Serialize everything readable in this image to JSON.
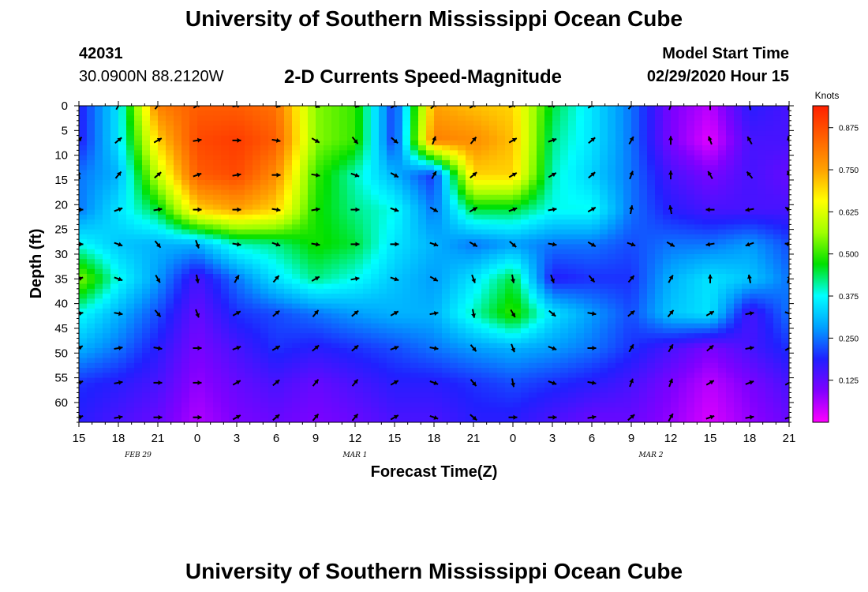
{
  "header": {
    "top_title": "University of Southern Mississippi Ocean Cube",
    "bottom_title": "University of Southern Mississippi Ocean Cube",
    "station_id": "42031",
    "station_coords": "30.0900N 88.2120W",
    "model_start_label": "Model Start Time",
    "model_start_time": "02/29/2020 Hour 15"
  },
  "chart_data": {
    "type": "heatmap",
    "title": "2-D Currents Speed-Magnitude",
    "xlabel": "Forecast Time(Z)",
    "ylabel": "Depth (ft)",
    "x_tick_labels": [
      "15",
      "18",
      "21",
      "0",
      "3",
      "6",
      "9",
      "12",
      "15",
      "18",
      "21",
      "0",
      "3",
      "6",
      "9",
      "12",
      "15",
      "18",
      "21"
    ],
    "date_labels": [
      {
        "label": "FEB 29",
        "tick_index": 1.5
      },
      {
        "label": "MAR 1",
        "tick_index": 7
      },
      {
        "label": "MAR 2",
        "tick_index": 14.5
      }
    ],
    "x_hours_range": [
      0,
      54
    ],
    "y_tick_labels": [
      "0",
      "5",
      "10",
      "15",
      "20",
      "25",
      "30",
      "35",
      "40",
      "45",
      "50",
      "55",
      "60"
    ],
    "ylim": [
      0,
      64
    ],
    "y_inverted": true,
    "colorbar": {
      "unit": "Knots",
      "tick_labels": [
        "0.875",
        "0.750",
        "0.625",
        "0.500",
        "0.375",
        "0.250",
        "0.125"
      ],
      "tick_values": [
        0.875,
        0.75,
        0.625,
        0.5,
        0.375,
        0.25,
        0.125
      ],
      "range": [
        0,
        0.94
      ],
      "colors": [
        "#ff00ff",
        "#8000ff",
        "#2020ff",
        "#00a0ff",
        "#00ffff",
        "#00e000",
        "#a0ff00",
        "#ffff00",
        "#ffa000",
        "#ff6000",
        "#ff2000"
      ]
    },
    "speed_grid": {
      "times_hours": [
        0,
        3,
        6,
        9,
        12,
        15,
        18,
        21,
        24,
        27,
        30,
        33,
        36,
        39,
        42,
        45,
        48,
        51,
        54
      ],
      "depths_ft": [
        0,
        7,
        14,
        21,
        28,
        35,
        42,
        49,
        56,
        63
      ],
      "values": [
        [
          0.18,
          0.35,
          0.8,
          0.85,
          0.85,
          0.82,
          0.55,
          0.5,
          0.2,
          0.75,
          0.72,
          0.7,
          0.45,
          0.35,
          0.25,
          0.1,
          0.05,
          0.18,
          0.15
        ],
        [
          0.18,
          0.35,
          0.7,
          0.88,
          0.9,
          0.85,
          0.55,
          0.5,
          0.2,
          0.8,
          0.78,
          0.72,
          0.42,
          0.35,
          0.25,
          0.1,
          0.02,
          0.15,
          0.15
        ],
        [
          0.25,
          0.3,
          0.6,
          0.85,
          0.88,
          0.78,
          0.5,
          0.4,
          0.3,
          0.2,
          0.7,
          0.7,
          0.4,
          0.33,
          0.25,
          0.15,
          0.1,
          0.15,
          0.12
        ],
        [
          0.25,
          0.35,
          0.45,
          0.7,
          0.75,
          0.7,
          0.48,
          0.42,
          0.38,
          0.25,
          0.45,
          0.45,
          0.38,
          0.38,
          0.25,
          0.18,
          0.15,
          0.15,
          0.15
        ],
        [
          0.38,
          0.32,
          0.3,
          0.3,
          0.4,
          0.42,
          0.48,
          0.45,
          0.35,
          0.3,
          0.25,
          0.28,
          0.25,
          0.25,
          0.22,
          0.25,
          0.25,
          0.28,
          0.22
        ],
        [
          0.55,
          0.38,
          0.28,
          0.15,
          0.25,
          0.35,
          0.42,
          0.38,
          0.32,
          0.28,
          0.35,
          0.45,
          0.18,
          0.2,
          0.2,
          0.3,
          0.35,
          0.32,
          0.25
        ],
        [
          0.38,
          0.3,
          0.22,
          0.12,
          0.2,
          0.22,
          0.25,
          0.28,
          0.3,
          0.3,
          0.4,
          0.5,
          0.35,
          0.28,
          0.22,
          0.32,
          0.35,
          0.15,
          0.25
        ],
        [
          0.3,
          0.25,
          0.18,
          0.1,
          0.15,
          0.2,
          0.18,
          0.2,
          0.22,
          0.25,
          0.28,
          0.3,
          0.28,
          0.25,
          0.2,
          0.15,
          0.1,
          0.15,
          0.2
        ],
        [
          0.2,
          0.18,
          0.15,
          0.08,
          0.12,
          0.15,
          0.12,
          0.15,
          0.18,
          0.18,
          0.2,
          0.22,
          0.2,
          0.18,
          0.15,
          0.1,
          0.05,
          0.1,
          0.15
        ],
        [
          0.18,
          0.15,
          0.12,
          0.06,
          0.1,
          0.12,
          0.1,
          0.12,
          0.15,
          0.15,
          0.18,
          0.18,
          0.15,
          0.12,
          0.12,
          0.08,
          0.03,
          0.08,
          0.12
        ]
      ]
    },
    "vector_depths_ft": [
      0,
      7,
      14,
      21,
      28,
      35,
      42,
      49,
      56,
      63
    ],
    "vector_direction_deg": [
      [
        10,
        30,
        40,
        60,
        80,
        100,
        110,
        100,
        60,
        50,
        60,
        70,
        80,
        60,
        40,
        20,
        0,
        -10,
        10
      ],
      [
        40,
        50,
        60,
        80,
        90,
        100,
        120,
        140,
        130,
        20,
        40,
        60,
        70,
        50,
        30,
        0,
        -20,
        -30,
        -10
      ],
      [
        -10,
        40,
        50,
        70,
        80,
        90,
        100,
        110,
        120,
        30,
        50,
        60,
        60,
        50,
        20,
        0,
        -30,
        -40,
        -20
      ],
      [
        90,
        70,
        80,
        90,
        90,
        100,
        80,
        90,
        110,
        120,
        60,
        70,
        80,
        60,
        10,
        -10,
        -90,
        -100,
        -60
      ],
      [
        90,
        110,
        140,
        160,
        100,
        110,
        100,
        90,
        90,
        110,
        120,
        130,
        100,
        120,
        110,
        120,
        -100,
        -110,
        -80
      ],
      [
        70,
        110,
        150,
        170,
        30,
        40,
        60,
        80,
        110,
        120,
        160,
        170,
        160,
        140,
        40,
        30,
        0,
        -10,
        20
      ],
      [
        80,
        100,
        140,
        160,
        60,
        50,
        40,
        50,
        60,
        80,
        170,
        150,
        130,
        100,
        50,
        40,
        60,
        80,
        110
      ],
      [
        60,
        80,
        100,
        90,
        70,
        60,
        50,
        50,
        70,
        100,
        140,
        160,
        110,
        90,
        30,
        30,
        50,
        80,
        60
      ],
      [
        70,
        80,
        90,
        90,
        60,
        50,
        40,
        40,
        60,
        110,
        140,
        170,
        110,
        100,
        20,
        20,
        60,
        70,
        60
      ],
      [
        70,
        80,
        90,
        90,
        60,
        50,
        40,
        40,
        60,
        110,
        130,
        90,
        90,
        80,
        50,
        30,
        70,
        80,
        70
      ]
    ]
  }
}
